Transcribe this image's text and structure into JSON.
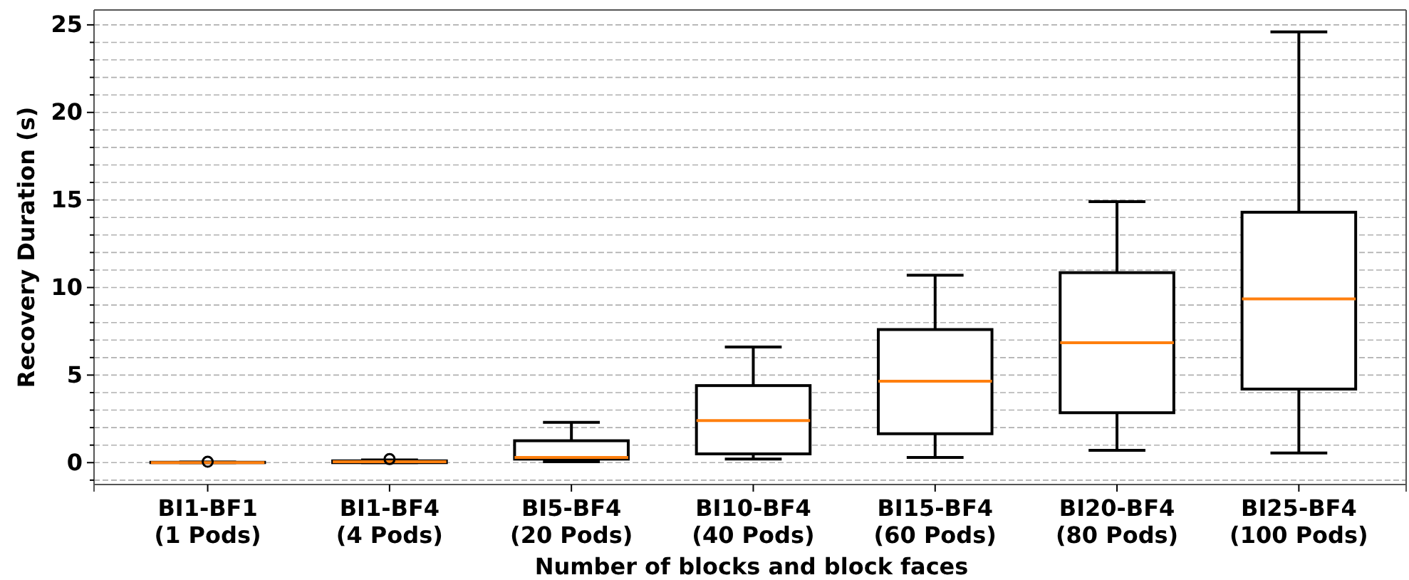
{
  "chart_data": {
    "type": "box",
    "xlabel": "Number of blocks and block faces",
    "ylabel": "Recovery Duration (s)",
    "categories": [
      "BI1-BF1\n(1 Pods)",
      "BI1-BF4\n(4 Pods)",
      "BI5-BF4\n(20 Pods)",
      "BI10-BF4\n(40 Pods)",
      "BI15-BF4\n(60 Pods)",
      "BI20-BF4\n(80 Pods)",
      "BI25-BF4\n(100 Pods)"
    ],
    "boxes": [
      {
        "low": 0,
        "q1": 0,
        "median": 0,
        "q3": 0.02,
        "high": 0.03,
        "outliers": [
          0.05
        ]
      },
      {
        "low": 0,
        "q1": 0,
        "median": 0.05,
        "q3": 0.1,
        "high": 0.15,
        "outliers": [
          0.2
        ]
      },
      {
        "low": 0.05,
        "q1": 0.2,
        "median": 0.3,
        "q3": 1.25,
        "high": 2.3
      },
      {
        "low": 0.2,
        "q1": 0.5,
        "median": 2.4,
        "q3": 4.4,
        "high": 6.6
      },
      {
        "low": 0.3,
        "q1": 1.65,
        "median": 4.65,
        "q3": 7.6,
        "high": 10.7
      },
      {
        "low": 0.7,
        "q1": 2.85,
        "median": 6.85,
        "q3": 10.85,
        "high": 14.9
      },
      {
        "low": 0.55,
        "q1": 4.2,
        "median": 9.35,
        "q3": 14.3,
        "high": 24.6
      }
    ],
    "ylim": [
      -1.25,
      25.85
    ],
    "yticks": [
      {
        "value": -1,
        "label": null
      },
      0,
      {
        "value": 1,
        "label": null
      },
      {
        "value": 2,
        "label": null
      },
      {
        "value": 3,
        "label": null
      },
      {
        "value": 4,
        "label": null
      },
      5,
      {
        "value": 6,
        "label": null
      },
      {
        "value": 7,
        "label": null
      },
      {
        "value": 8,
        "label": null
      },
      {
        "value": 9,
        "label": null
      },
      10,
      {
        "value": 11,
        "label": null
      },
      {
        "value": 12,
        "label": null
      },
      {
        "value": 13,
        "label": null
      },
      {
        "value": 14,
        "label": null
      },
      15,
      {
        "value": 16,
        "label": null
      },
      {
        "value": 17,
        "label": null
      },
      {
        "value": 18,
        "label": null
      },
      {
        "value": 19,
        "label": null
      },
      20,
      {
        "value": 21,
        "label": null
      },
      {
        "value": 22,
        "label": null
      },
      {
        "value": 23,
        "label": null
      },
      {
        "value": 24,
        "label": null
      },
      25
    ],
    "grid": true
  }
}
